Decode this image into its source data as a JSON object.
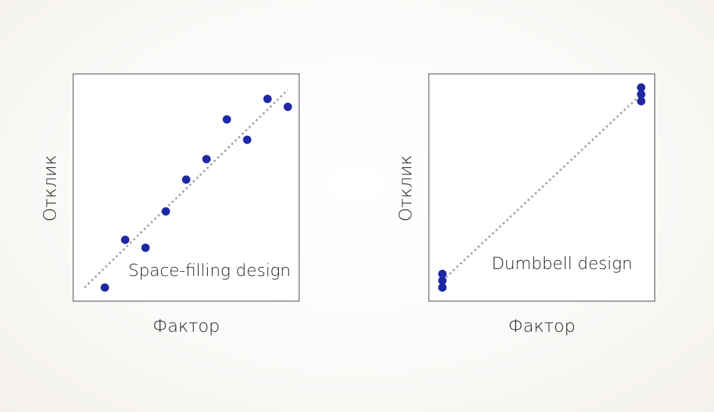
{
  "colors": {
    "points": "#1f28a3",
    "line": "#a6a6a6"
  },
  "chart_data": [
    {
      "type": "scatter",
      "title": "",
      "annotation": "Space-filling design",
      "xlabel": "Фактор",
      "ylabel": "Отклик",
      "xlim": [
        0,
        10
      ],
      "ylim": [
        0,
        10
      ],
      "grid": false,
      "ticks": false,
      "points": [
        {
          "x": 1.4,
          "y": 0.6
        },
        {
          "x": 2.3,
          "y": 2.7
        },
        {
          "x": 3.2,
          "y": 2.35
        },
        {
          "x": 4.1,
          "y": 3.95
        },
        {
          "x": 5.0,
          "y": 5.35
        },
        {
          "x": 5.9,
          "y": 6.25
        },
        {
          "x": 6.8,
          "y": 8.0
        },
        {
          "x": 7.7,
          "y": 7.1
        },
        {
          "x": 8.6,
          "y": 8.9
        },
        {
          "x": 9.5,
          "y": 8.55
        }
      ],
      "trend": {
        "x1": 0.5,
        "y1": 0.6,
        "x2": 9.5,
        "y2": 9.3
      }
    },
    {
      "type": "scatter",
      "title": "",
      "annotation": "Dumbbell design",
      "xlabel": "Фактор",
      "ylabel": "Отклик",
      "xlim": [
        0,
        10
      ],
      "ylim": [
        0,
        10
      ],
      "grid": false,
      "ticks": false,
      "points": [
        {
          "x": 0.6,
          "y": 0.6
        },
        {
          "x": 0.6,
          "y": 0.9
        },
        {
          "x": 0.6,
          "y": 1.2
        },
        {
          "x": 9.4,
          "y": 8.8
        },
        {
          "x": 9.4,
          "y": 9.1
        },
        {
          "x": 9.4,
          "y": 9.4
        }
      ],
      "trend": {
        "x1": 0.6,
        "y1": 0.9,
        "x2": 9.4,
        "y2": 9.1
      }
    }
  ]
}
